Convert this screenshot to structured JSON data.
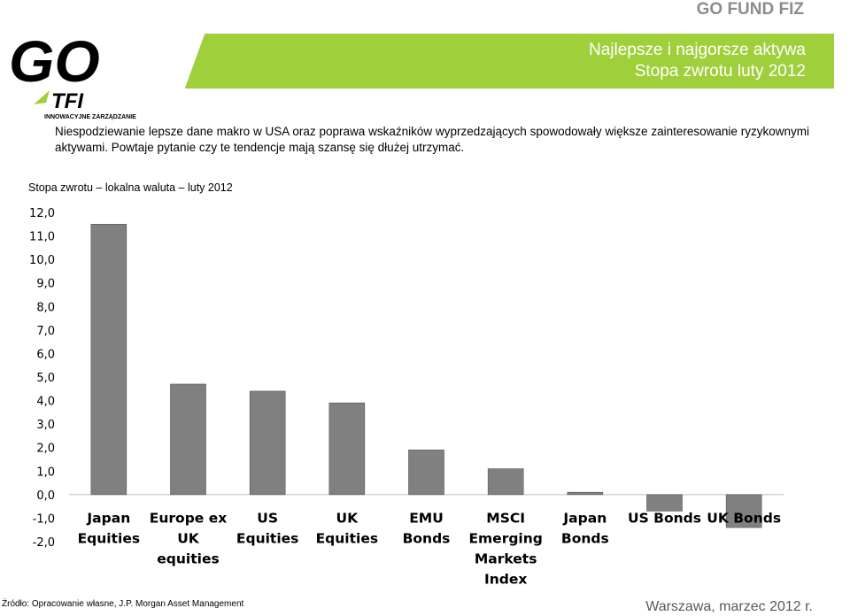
{
  "header": {
    "brand": "GO FUND FIZ",
    "title_line1": "Najlepsze i najgorsze aktywa",
    "title_line2": "Stopa zwrotu luty 2012"
  },
  "logo": {
    "text_go": "GO",
    "text_tfi": "TFI",
    "tagline": "INNOWACYJNE ZARZĄDZANIE"
  },
  "intro": "Niespodziewanie lepsze dane makro w USA oraz poprawa wskaźników wyprzedzających spowodowały większe zainteresowanie ryzykownymi aktywami. Powtaje pytanie czy te tendencje mają szansę się dłużej utrzymać.",
  "footer": {
    "source": "Źródło: Opracowanie własne, J.P. Morgan Asset Management",
    "place_date": "Warszawa, marzec 2012 r."
  },
  "colors": {
    "bar": "#808080",
    "accent": "#9fcf3b"
  },
  "chart_data": {
    "type": "bar",
    "title": "Stopa zwrotu – lokalna waluta – luty 2012",
    "categories": [
      [
        "Japan",
        "Equities"
      ],
      [
        "Europe ex",
        "UK",
        "equities"
      ],
      [
        "US",
        "Equities"
      ],
      [
        "UK",
        "Equities"
      ],
      [
        "EMU",
        "Bonds"
      ],
      [
        "MSCI",
        "Emerging",
        "Markets",
        "Index"
      ],
      [
        "Japan",
        "Bonds"
      ],
      [
        "US Bonds"
      ],
      [
        "UK Bonds"
      ]
    ],
    "values": [
      11.5,
      4.7,
      4.4,
      3.9,
      1.9,
      1.1,
      0.1,
      -0.7,
      -1.4
    ],
    "ylim": [
      -2,
      12
    ],
    "yticks": [
      "12,0",
      "11,0",
      "10,0",
      "9,0",
      "8,0",
      "7,0",
      "6,0",
      "5,0",
      "4,0",
      "3,0",
      "2,0",
      "1,0",
      "0,0",
      "-1,0",
      "-2,0"
    ],
    "grid": false,
    "legend": "none"
  }
}
